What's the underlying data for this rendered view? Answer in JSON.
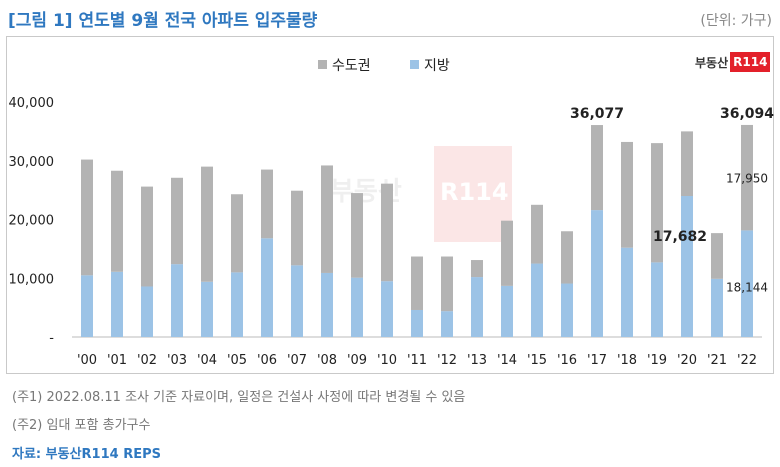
{
  "header": {
    "title": "[그림 1] 연도별 9월 전국 아파트 입주물량",
    "unit": "(단위: 가구)"
  },
  "logo": {
    "text": "부동산",
    "badge": "R114"
  },
  "watermark": {
    "text": "부동산",
    "badge": "R114"
  },
  "chart_data": {
    "type": "bar",
    "stacked": true,
    "categories": [
      "'00",
      "'01",
      "'02",
      "'03",
      "'04",
      "'05",
      "'06",
      "'07",
      "'08",
      "'09",
      "'10",
      "'11",
      "'12",
      "'13",
      "'14",
      "'15",
      "'16",
      "'17",
      "'18",
      "'19",
      "'20",
      "'21",
      "'22"
    ],
    "series": [
      {
        "name": "지방",
        "color": "#9cc3e6",
        "values": [
          10500,
          11100,
          8600,
          12400,
          9400,
          11000,
          16800,
          12200,
          10900,
          10100,
          9500,
          4600,
          4400,
          10200,
          8700,
          12500,
          9100,
          21600,
          15200,
          12700,
          24000,
          9900,
          18144
        ]
      },
      {
        "name": "수도권",
        "color": "#b3b3b3",
        "values": [
          19700,
          17200,
          17000,
          14700,
          19600,
          13300,
          11700,
          12700,
          18300,
          14400,
          16600,
          9100,
          9300,
          2900,
          11100,
          10000,
          8900,
          14477,
          18000,
          20300,
          11000,
          7782,
          17950
        ]
      }
    ],
    "legend_order": [
      "수도권",
      "지방"
    ],
    "legend_position": "top",
    "yticks": [
      "-",
      "10,000",
      "20,000",
      "30,000",
      "40,000"
    ],
    "ylim": [
      0,
      40000
    ],
    "annotations": [
      {
        "category": "'17",
        "text": "36,077",
        "bold": true
      },
      {
        "category": "'21",
        "text": "17,682",
        "bold": true
      },
      {
        "category": "'22",
        "text": "36,094",
        "bold": true
      },
      {
        "category": "'22",
        "text": "17,950",
        "bold": false,
        "segment": "수도권"
      },
      {
        "category": "'22",
        "text": "18,144",
        "bold": false,
        "segment": "지방"
      }
    ]
  },
  "notes": [
    "(주1) 2022.08.11 조사 기준 자료이며, 일정은 건설사 사정에 따라 변경될 수 있음",
    "(주2) 임대 포함 총가구수"
  ],
  "source": "자료: 부동산R114 REPS"
}
